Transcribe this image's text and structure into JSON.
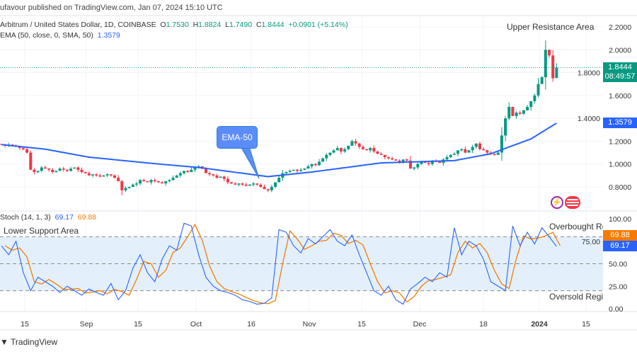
{
  "header": {
    "published": "ufavour published on TradingView.com, Jan 07, 2024 15:10 UTC"
  },
  "legend": {
    "symbol": "Arbitrum / United States Dollar, 1D, COINBASE",
    "o_label": "O",
    "o": "1.7530",
    "h_label": "H",
    "h": "1.8824",
    "l_label": "L",
    "l": "1.7490",
    "c_label": "C",
    "c": "1.8444",
    "change": "+0.0901 (+5.14%)",
    "ema_label": "EMA (50, close, 0, SMA, 50)",
    "ema_value": "1.3579",
    "stoch_label": "Stoch (14, 1, 3)",
    "stoch_k": "69.17",
    "stoch_d": "69.88"
  },
  "annotations": {
    "upper": "Upper Resistance Area",
    "lower": "Lower Support Area",
    "ema_callout": "EMA-50",
    "overbought": "Overbought Re",
    "oversold": "Oversold Regi"
  },
  "price_tags": {
    "last": "1.8444",
    "countdown": "08:49:57",
    "ema": "1.3579",
    "stoch_d": "69.88",
    "stoch_k": "69.17"
  },
  "footer": {
    "brand": "TradingView"
  },
  "colors": {
    "up": "#089981",
    "down": "#f23645",
    "ema": "#2962ff",
    "stoch_k": "#2962ff",
    "stoch_d": "#f57c00",
    "band": "#e3f0fc"
  },
  "icons": [
    "lightning-icon",
    "us-flag-icon",
    "tradingview-logo-icon"
  ],
  "chart_data": [
    {
      "type": "candlestick",
      "start_date": "2023-08-08",
      "end_date": "2024-01-07",
      "interval": "1D",
      "yticks": [
        "0.8000",
        "1.0000",
        "1.2000",
        "1.4000",
        "1.6000",
        "1.8000",
        "2.0000",
        "2.2000"
      ],
      "ylim": [
        0.78,
        2.2
      ],
      "xticks": [
        "15",
        "Sep",
        "15",
        "Oct",
        "16",
        "Nov",
        "15",
        "Dec",
        "18",
        "2024",
        "15"
      ],
      "last_candle": {
        "open": 1.753,
        "high": 1.8824,
        "low": 1.749,
        "close": 1.8444
      },
      "closes": [
        1.17,
        1.16,
        1.17,
        1.16,
        1.15,
        1.14,
        1.13,
        1.1,
        0.95,
        0.93,
        0.94,
        0.97,
        0.96,
        0.95,
        0.93,
        0.94,
        0.96,
        0.95,
        0.94,
        0.96,
        0.97,
        0.95,
        0.93,
        0.92,
        0.9,
        0.91,
        0.9,
        0.89,
        0.9,
        0.91,
        0.9,
        0.88,
        0.85,
        0.77,
        0.79,
        0.8,
        0.82,
        0.83,
        0.86,
        0.85,
        0.84,
        0.86,
        0.85,
        0.84,
        0.83,
        0.85,
        0.86,
        0.88,
        0.9,
        0.92,
        0.94,
        0.93,
        0.95,
        0.97,
        0.98,
        0.96,
        0.92,
        0.91,
        0.9,
        0.88,
        0.89,
        0.87,
        0.84,
        0.83,
        0.82,
        0.83,
        0.82,
        0.81,
        0.82,
        0.83,
        0.82,
        0.8,
        0.78,
        0.77,
        0.8,
        0.84,
        0.88,
        0.92,
        0.93,
        0.94,
        0.95,
        0.94,
        0.95,
        0.96,
        0.98,
        1.0,
        0.99,
        1.02,
        1.05,
        1.08,
        1.1,
        1.12,
        1.14,
        1.11,
        1.13,
        1.16,
        1.2,
        1.18,
        1.15,
        1.13,
        1.12,
        1.14,
        1.11,
        1.09,
        1.08,
        1.06,
        1.05,
        1.04,
        1.03,
        1.02,
        1.04,
        1.03,
        0.96,
        0.97,
        1.0,
        1.02,
        1.01,
        1.0,
        1.03,
        1.02,
        1.01,
        1.04,
        1.06,
        1.08,
        1.09,
        1.12,
        1.13,
        1.1,
        1.12,
        1.15,
        1.18,
        1.13,
        1.12,
        1.1,
        1.09,
        1.08,
        1.1,
        1.25,
        1.4,
        1.5,
        1.42,
        1.45,
        1.44,
        1.47,
        1.5,
        1.55,
        1.6,
        1.7,
        1.76,
        2.0,
        1.95,
        1.75,
        1.8444
      ],
      "ema": {
        "series_name": "EMA (50, close, 0, SMA, 50)",
        "points": [
          [
            "2023-08-08",
            1.17
          ],
          [
            "2023-08-20",
            1.13
          ],
          [
            "2023-09-01",
            1.06
          ],
          [
            "2023-09-20",
            1.0
          ],
          [
            "2023-10-01",
            0.97
          ],
          [
            "2023-10-20",
            0.89
          ],
          [
            "2023-11-01",
            0.93
          ],
          [
            "2023-11-20",
            1.01
          ],
          [
            "2023-12-10",
            1.03
          ],
          [
            "2023-12-20",
            1.09
          ],
          [
            "2023-12-31",
            1.22
          ],
          [
            "2024-01-07",
            1.3579
          ]
        ]
      }
    },
    {
      "type": "line",
      "title": "Stoch (14, 1, 3)",
      "yticks": [
        "0.00",
        "25.00",
        "50.00",
        "75.00",
        "100.00"
      ],
      "ylim": [
        0,
        100
      ],
      "bands": [
        20,
        50,
        80
      ],
      "step_days": 2,
      "k": [
        70,
        60,
        75,
        40,
        20,
        35,
        30,
        25,
        18,
        25,
        20,
        15,
        22,
        18,
        15,
        28,
        10,
        20,
        45,
        60,
        40,
        30,
        55,
        70,
        65,
        95,
        92,
        60,
        35,
        25,
        20,
        18,
        15,
        10,
        8,
        5,
        6,
        12,
        88,
        85,
        70,
        62,
        78,
        72,
        80,
        88,
        75,
        70,
        82,
        60,
        40,
        20,
        15,
        25,
        10,
        5,
        22,
        28,
        35,
        30,
        40,
        35,
        90,
        60,
        75,
        70,
        55,
        30,
        25,
        20,
        92,
        70,
        85,
        72,
        90,
        80,
        69.17
      ],
      "d_last": 69.88
    }
  ]
}
